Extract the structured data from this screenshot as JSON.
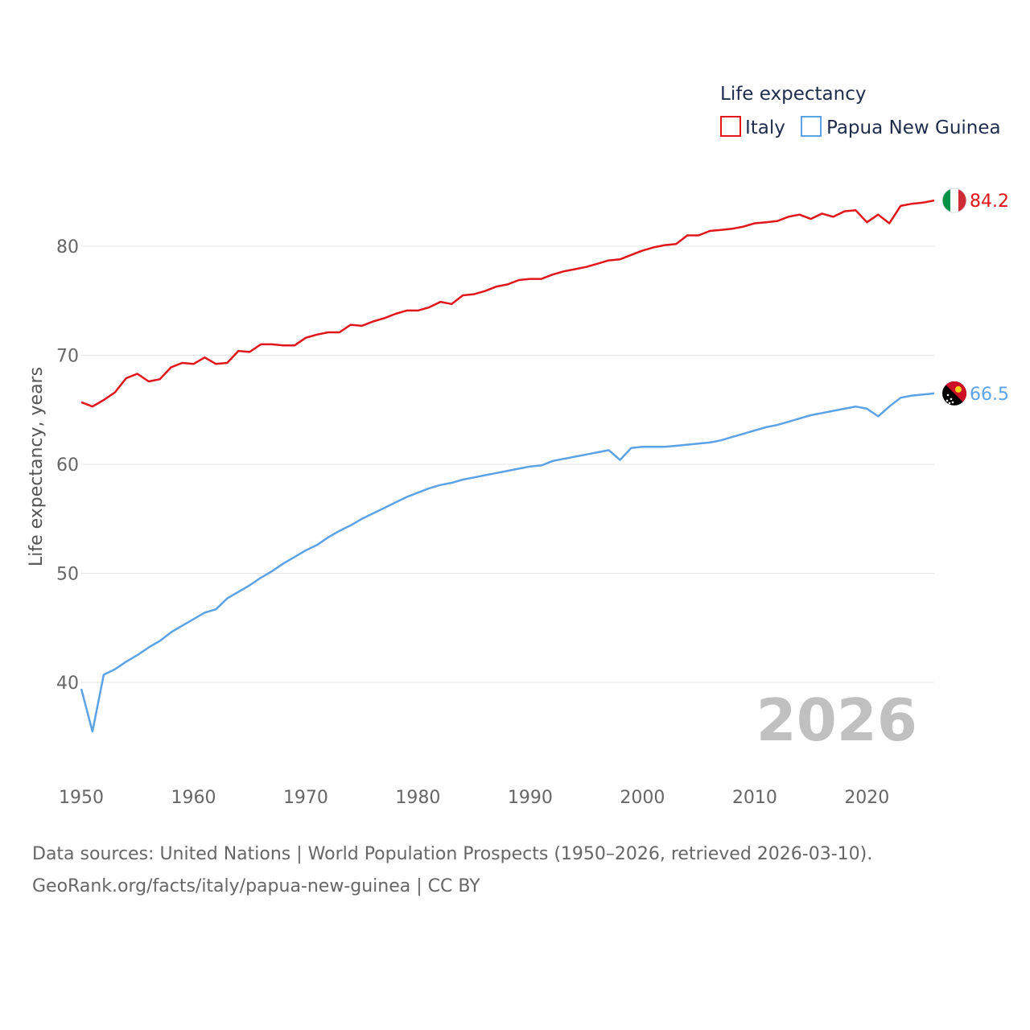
{
  "chart_data": {
    "type": "line",
    "title": "",
    "xlabel": "",
    "ylabel": "Life expectancy, years",
    "xlim": [
      1950,
      2026
    ],
    "ylim": [
      33,
      88
    ],
    "xticks": [
      1950,
      1960,
      1970,
      1980,
      1990,
      2000,
      2010,
      2020
    ],
    "yticks": [
      40,
      50,
      60,
      70,
      80
    ],
    "grid": "horizontal",
    "legend_title": "Life expectancy",
    "legend_position": "top-right",
    "year_label": "2026",
    "series": [
      {
        "name": "Italy",
        "color": "#e0161b",
        "end_value": 84.2,
        "end_label": "84.2",
        "flag": "italy-flag",
        "x": [
          1950,
          1951,
          1952,
          1953,
          1954,
          1955,
          1956,
          1957,
          1958,
          1959,
          1960,
          1961,
          1962,
          1963,
          1964,
          1965,
          1966,
          1967,
          1968,
          1969,
          1970,
          1971,
          1972,
          1973,
          1974,
          1975,
          1976,
          1977,
          1978,
          1979,
          1980,
          1981,
          1982,
          1983,
          1984,
          1985,
          1986,
          1987,
          1988,
          1989,
          1990,
          1991,
          1992,
          1993,
          1994,
          1995,
          1996,
          1997,
          1998,
          1999,
          2000,
          2001,
          2002,
          2003,
          2004,
          2005,
          2006,
          2007,
          2008,
          2009,
          2010,
          2011,
          2012,
          2013,
          2014,
          2015,
          2016,
          2017,
          2018,
          2019,
          2020,
          2021,
          2022,
          2023,
          2024,
          2025,
          2026
        ],
        "y": [
          65.7,
          65.3,
          65.9,
          66.6,
          67.9,
          68.3,
          67.6,
          67.8,
          68.9,
          69.3,
          69.2,
          69.8,
          69.2,
          69.3,
          70.4,
          70.3,
          71.0,
          71.0,
          70.9,
          70.9,
          71.6,
          71.9,
          72.1,
          72.1,
          72.8,
          72.7,
          73.1,
          73.4,
          73.8,
          74.1,
          74.1,
          74.4,
          74.9,
          74.7,
          75.5,
          75.6,
          75.9,
          76.3,
          76.5,
          76.9,
          77.0,
          77.0,
          77.4,
          77.7,
          77.9,
          78.1,
          78.4,
          78.7,
          78.8,
          79.2,
          79.6,
          79.9,
          80.1,
          80.2,
          81.0,
          81.0,
          81.4,
          81.5,
          81.6,
          81.8,
          82.1,
          82.2,
          82.3,
          82.7,
          82.9,
          82.5,
          83.0,
          82.7,
          83.2,
          83.3,
          82.2,
          82.9,
          82.1,
          83.7,
          83.9,
          84.0,
          84.2
        ]
      },
      {
        "name": "Papua New Guinea",
        "color": "#5ba3e6",
        "end_value": 66.5,
        "end_label": "66.5",
        "flag": "papua-new-guinea-flag",
        "x": [
          1950,
          1951,
          1952,
          1953,
          1954,
          1955,
          1956,
          1957,
          1958,
          1959,
          1960,
          1961,
          1962,
          1963,
          1964,
          1965,
          1966,
          1967,
          1968,
          1969,
          1970,
          1971,
          1972,
          1973,
          1974,
          1975,
          1976,
          1977,
          1978,
          1979,
          1980,
          1981,
          1982,
          1983,
          1984,
          1985,
          1986,
          1987,
          1988,
          1989,
          1990,
          1991,
          1992,
          1993,
          1994,
          1995,
          1996,
          1997,
          1998,
          1999,
          2000,
          2001,
          2002,
          2003,
          2004,
          2005,
          2006,
          2007,
          2008,
          2009,
          2010,
          2011,
          2012,
          2013,
          2014,
          2015,
          2016,
          2017,
          2018,
          2019,
          2020,
          2021,
          2022,
          2023,
          2024,
          2025,
          2026
        ],
        "y": [
          39.4,
          35.5,
          40.7,
          41.2,
          41.9,
          42.5,
          43.2,
          43.8,
          44.6,
          45.2,
          45.8,
          46.4,
          46.7,
          47.7,
          48.3,
          48.9,
          49.6,
          50.2,
          50.9,
          51.5,
          52.1,
          52.6,
          53.3,
          53.9,
          54.4,
          55.0,
          55.5,
          56.0,
          56.5,
          57.0,
          57.4,
          57.8,
          58.1,
          58.3,
          58.6,
          58.8,
          59.0,
          59.2,
          59.4,
          59.6,
          59.8,
          59.9,
          60.3,
          60.5,
          60.7,
          60.9,
          61.1,
          61.3,
          60.4,
          61.5,
          61.6,
          61.6,
          61.6,
          61.7,
          61.8,
          61.9,
          62.0,
          62.2,
          62.5,
          62.8,
          63.1,
          63.4,
          63.6,
          63.9,
          64.2,
          64.5,
          64.7,
          64.9,
          65.1,
          65.3,
          65.1,
          64.4,
          65.3,
          66.1,
          66.3,
          66.4,
          66.5
        ]
      }
    ]
  },
  "footer": {
    "source_line": "Data sources: United Nations | World Population Prospects (1950–2026, retrieved 2026-03-10).",
    "credit_line": "GeoRank.org/facts/italy/papua-new-guinea | CC BY"
  }
}
